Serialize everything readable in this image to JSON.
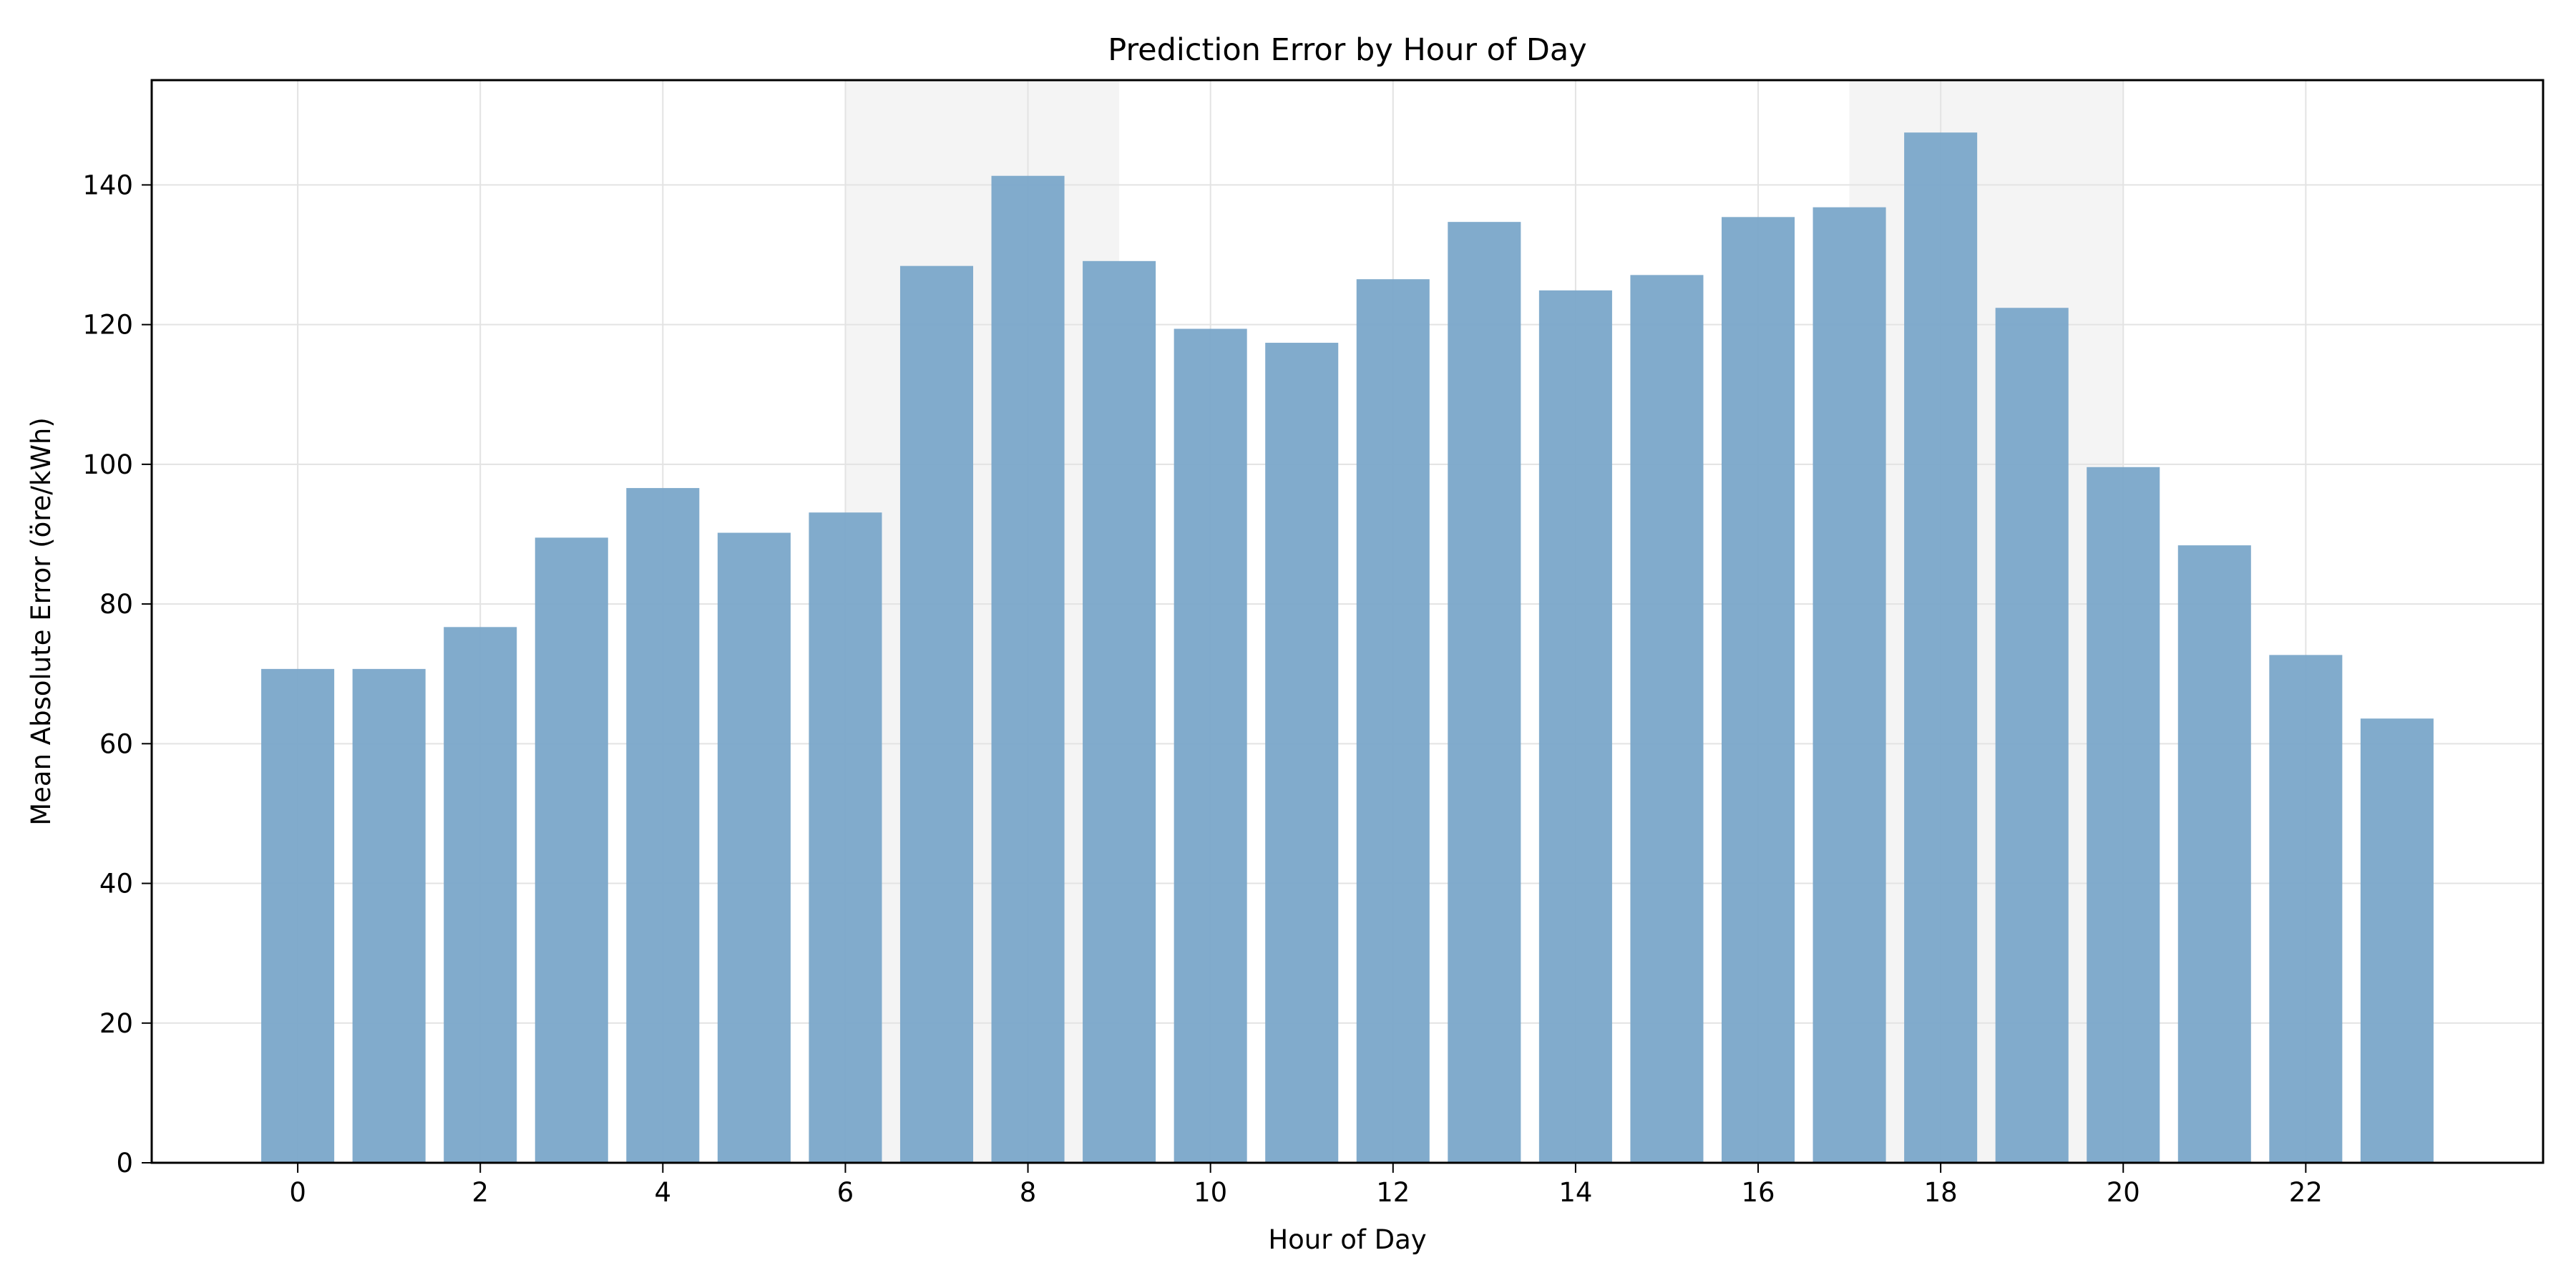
{
  "chart_data": {
    "type": "bar",
    "title": "Prediction Error by Hour of Day",
    "xlabel": "Hour of Day",
    "ylabel": "Mean Absolute Error (öre/kWh)",
    "categories": [
      0,
      1,
      2,
      3,
      4,
      5,
      6,
      7,
      8,
      9,
      10,
      11,
      12,
      13,
      14,
      15,
      16,
      17,
      18,
      19,
      20,
      21,
      22,
      23
    ],
    "values": [
      70.7,
      70.7,
      76.7,
      89.5,
      96.6,
      90.2,
      93.1,
      128.4,
      141.3,
      129.1,
      119.4,
      117.4,
      126.5,
      134.7,
      124.9,
      127.1,
      135.4,
      136.8,
      147.5,
      122.4,
      99.6,
      88.4,
      72.7,
      63.6
    ],
    "xlim": [
      -1.6,
      24.6
    ],
    "ylim": [
      0,
      155
    ],
    "x_ticks": [
      0,
      2,
      4,
      6,
      8,
      10,
      12,
      14,
      16,
      18,
      20,
      22
    ],
    "y_ticks": [
      0,
      20,
      40,
      60,
      80,
      100,
      120,
      140
    ],
    "shaded_ranges": [
      [
        6,
        9
      ],
      [
        17,
        20
      ]
    ],
    "grid": true,
    "colors": {
      "bar": "#7aa6c9",
      "shade": "#f4f4f4",
      "grid": "#e3e3e3",
      "axis": "#000000"
    }
  }
}
